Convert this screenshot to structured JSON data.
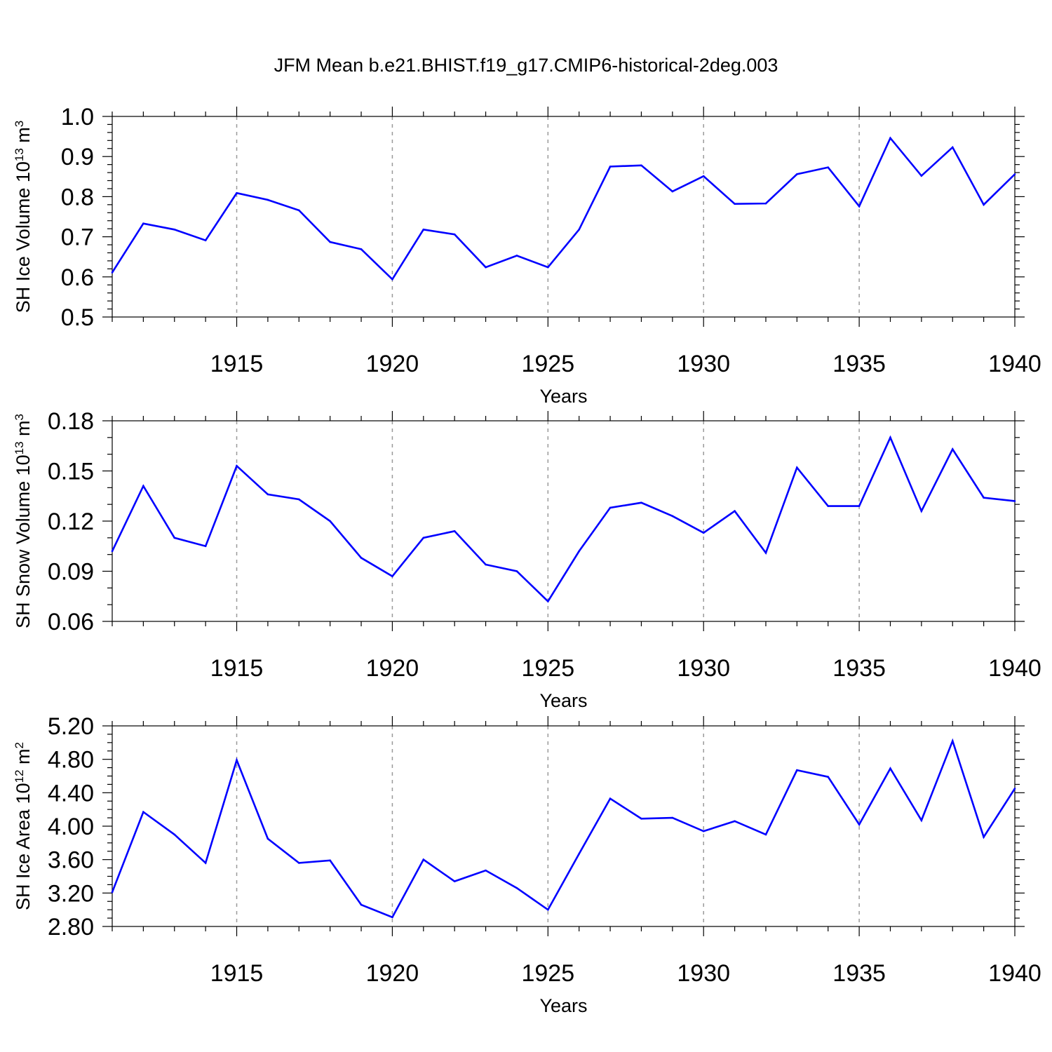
{
  "figure": {
    "title": "JFM Mean b.e21.BHIST.f19_g17.CMIP6-historical-2deg.003"
  },
  "chart_data": [
    {
      "type": "line",
      "title": "",
      "xlabel": "Years",
      "ylabel_main": "SH Ice Volume 10",
      "ylabel_exp": "13",
      "ylabel_unit": " m",
      "ylabel_unit_exp": "3",
      "xlim": [
        1911,
        1940
      ],
      "ylim": [
        0.5,
        1.0
      ],
      "grid": "dashed vertical lines at labeled years",
      "x_ticks": [
        1915,
        1920,
        1925,
        1930,
        1935,
        1940
      ],
      "x_tick_labels": [
        "1915",
        "1920",
        "1925",
        "1930",
        "1935",
        "1940"
      ],
      "y_ticks": [
        0.5,
        0.6,
        0.7,
        0.8,
        0.9,
        1.0
      ],
      "y_tick_labels": [
        "0.5",
        "0.6",
        "0.7",
        "0.8",
        "0.9",
        "1.0"
      ],
      "y_minor_step": 0.02,
      "x": [
        1911,
        1912,
        1913,
        1914,
        1915,
        1916,
        1917,
        1918,
        1919,
        1920,
        1921,
        1922,
        1923,
        1924,
        1925,
        1926,
        1927,
        1928,
        1929,
        1930,
        1931,
        1932,
        1933,
        1934,
        1935,
        1936,
        1937,
        1938,
        1939,
        1940
      ],
      "series": [
        {
          "color": "#0000ff",
          "values": [
            0.611,
            0.733,
            0.718,
            0.691,
            0.809,
            0.792,
            0.766,
            0.687,
            0.669,
            0.594,
            0.718,
            0.706,
            0.624,
            0.653,
            0.624,
            0.718,
            0.875,
            0.878,
            0.813,
            0.851,
            0.782,
            0.783,
            0.856,
            0.873,
            0.776,
            0.946,
            0.852,
            0.923,
            0.78,
            0.856
          ]
        }
      ]
    },
    {
      "type": "line",
      "title": "",
      "xlabel": "Years",
      "ylabel_main": "SH Snow Volume 10",
      "ylabel_exp": "13",
      "ylabel_unit": " m",
      "ylabel_unit_exp": "3",
      "xlim": [
        1911,
        1940
      ],
      "ylim": [
        0.06,
        0.18
      ],
      "grid": "dashed vertical lines at labeled years",
      "x_ticks": [
        1915,
        1920,
        1925,
        1930,
        1935,
        1940
      ],
      "x_tick_labels": [
        "1915",
        "1920",
        "1925",
        "1930",
        "1935",
        "1940"
      ],
      "y_ticks": [
        0.06,
        0.09,
        0.12,
        0.15,
        0.18
      ],
      "y_tick_labels": [
        "0.06",
        "0.09",
        "0.12",
        "0.15",
        "0.18"
      ],
      "y_minor_step": 0.01,
      "x": [
        1911,
        1912,
        1913,
        1914,
        1915,
        1916,
        1917,
        1918,
        1919,
        1920,
        1921,
        1922,
        1923,
        1924,
        1925,
        1926,
        1927,
        1928,
        1929,
        1930,
        1931,
        1932,
        1933,
        1934,
        1935,
        1936,
        1937,
        1938,
        1939,
        1940
      ],
      "series": [
        {
          "color": "#0000ff",
          "values": [
            0.102,
            0.141,
            0.11,
            0.105,
            0.153,
            0.136,
            0.133,
            0.12,
            0.098,
            0.087,
            0.11,
            0.114,
            0.094,
            0.09,
            0.072,
            0.102,
            0.128,
            0.131,
            0.123,
            0.113,
            0.126,
            0.101,
            0.152,
            0.129,
            0.129,
            0.17,
            0.126,
            0.163,
            0.134,
            0.132
          ]
        }
      ]
    },
    {
      "type": "line",
      "title": "",
      "xlabel": "Years",
      "ylabel_main": "SH Ice Area 10",
      "ylabel_exp": "12",
      "ylabel_unit": " m",
      "ylabel_unit_exp": "2",
      "xlim": [
        1911,
        1940
      ],
      "ylim": [
        2.8,
        5.2
      ],
      "grid": "dashed vertical lines at labeled years",
      "x_ticks": [
        1915,
        1920,
        1925,
        1930,
        1935,
        1940
      ],
      "x_tick_labels": [
        "1915",
        "1920",
        "1925",
        "1930",
        "1935",
        "1940"
      ],
      "y_ticks": [
        2.8,
        3.2,
        3.6,
        4.0,
        4.4,
        4.8,
        5.2
      ],
      "y_tick_labels": [
        "2.80",
        "3.20",
        "3.60",
        "4.00",
        "4.40",
        "4.80",
        "5.20"
      ],
      "y_minor_step": 0.1,
      "x": [
        1911,
        1912,
        1913,
        1914,
        1915,
        1916,
        1917,
        1918,
        1919,
        1920,
        1921,
        1922,
        1923,
        1924,
        1925,
        1926,
        1927,
        1928,
        1929,
        1930,
        1931,
        1932,
        1933,
        1934,
        1935,
        1936,
        1937,
        1938,
        1939,
        1940
      ],
      "series": [
        {
          "color": "#0000ff",
          "values": [
            3.21,
            4.17,
            3.9,
            3.56,
            4.79,
            3.85,
            3.56,
            3.59,
            3.06,
            2.91,
            3.6,
            3.34,
            3.47,
            3.26,
            3.0,
            3.67,
            4.33,
            4.09,
            4.1,
            3.94,
            4.06,
            3.9,
            4.67,
            4.59,
            4.02,
            4.69,
            4.07,
            5.02,
            3.87,
            4.45
          ]
        }
      ]
    }
  ]
}
